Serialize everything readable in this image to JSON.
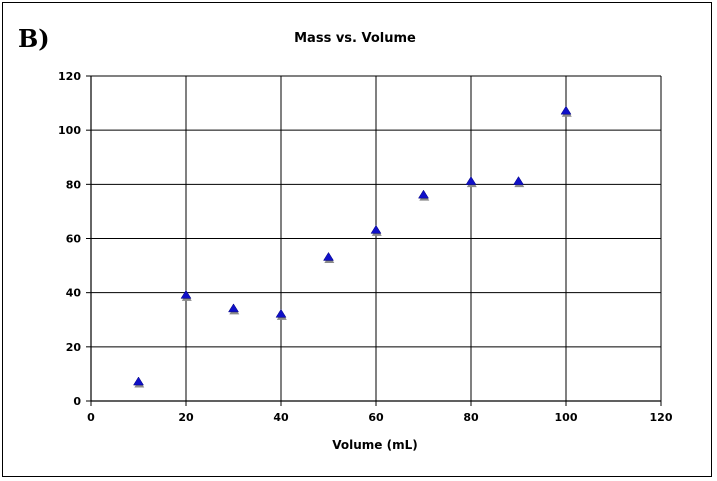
{
  "panel_label": "B)",
  "chart_data": {
    "type": "scatter",
    "title": "Mass vs. Volume",
    "xlabel": "Volume (mL)",
    "ylabel": "",
    "xlim": [
      0,
      120
    ],
    "ylim": [
      0,
      120
    ],
    "xticks": [
      0,
      20,
      40,
      60,
      80,
      100,
      120
    ],
    "yticks": [
      0,
      20,
      40,
      60,
      80,
      100,
      120
    ],
    "grid": true,
    "legend": "none",
    "marker": "triangle",
    "colors": {
      "marker_fill": "#1010c8",
      "marker_shadow": "#8a8a8a",
      "grid": "#000000"
    },
    "series": [
      {
        "x": [
          10,
          20,
          30,
          40,
          50,
          60,
          70,
          80,
          90,
          100
        ],
        "y": [
          7,
          39,
          34,
          32,
          53,
          63,
          76,
          81,
          81,
          107
        ]
      }
    ]
  }
}
